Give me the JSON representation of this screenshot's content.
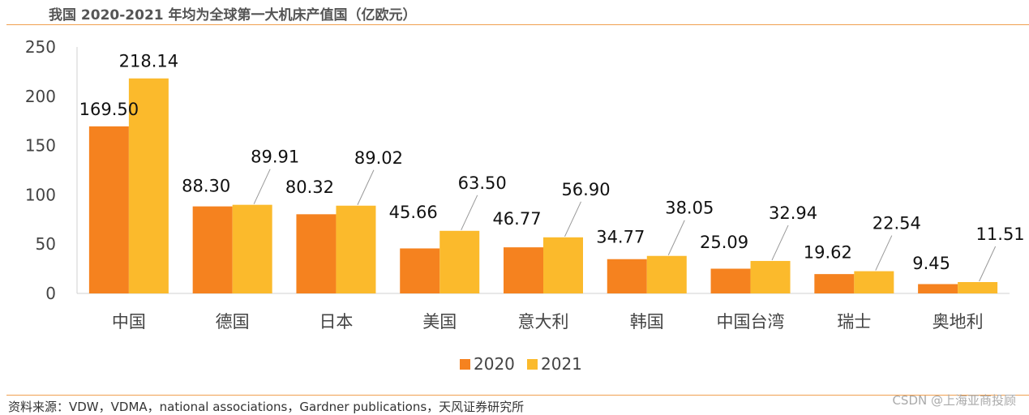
{
  "title": "我国 2020-2021 年均为全球第一大机床产值国（亿欧元）",
  "source": "资料来源：VDW，VDMA，national associations，Gardner publications，天风证券研究所",
  "watermark": "CSDN @上海亚商投顾",
  "chart_data": {
    "type": "bar",
    "title": "我国 2020-2021 年均为全球第一大机床产值国（亿欧元）",
    "xlabel": "",
    "ylabel": "",
    "ylim": [
      0,
      250
    ],
    "yticks": [
      0,
      50,
      100,
      150,
      200,
      250
    ],
    "categories": [
      "中国",
      "德国",
      "日本",
      "美国",
      "意大利",
      "韩国",
      "中国台湾",
      "瑞士",
      "奥地利"
    ],
    "series": [
      {
        "name": "2020",
        "color": "#F5821F",
        "values": [
          169.5,
          88.3,
          80.32,
          45.66,
          46.77,
          34.77,
          25.09,
          19.62,
          9.45
        ],
        "labels": [
          "169.50",
          "88.30",
          "80.32",
          "45.66",
          "46.77",
          "34.77",
          "25.09",
          "19.62",
          "9.45"
        ]
      },
      {
        "name": "2021",
        "color": "#FBBA2C",
        "values": [
          218.14,
          89.91,
          89.02,
          63.5,
          56.9,
          38.05,
          32.94,
          22.54,
          11.51
        ],
        "labels": [
          "218.14",
          "89.91",
          "89.02",
          "63.50",
          "56.90",
          "38.05",
          "32.94",
          "22.54",
          "11.51"
        ]
      }
    ],
    "legend": "bottom-center",
    "grid": false
  }
}
